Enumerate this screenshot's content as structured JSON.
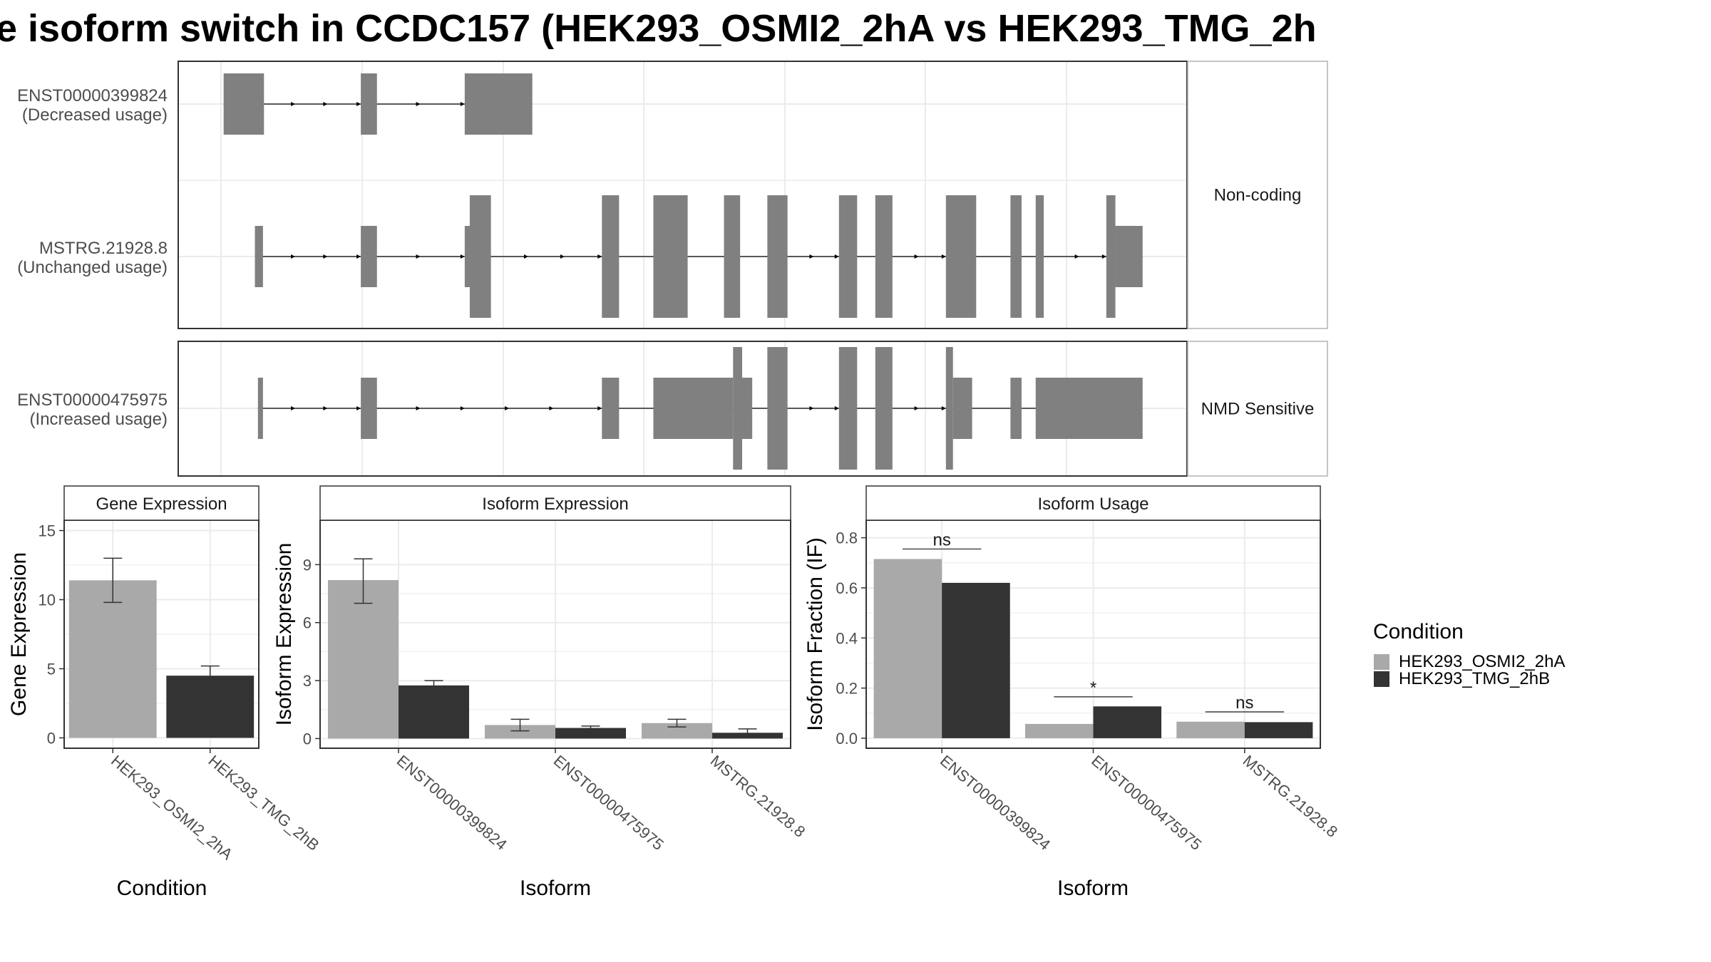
{
  "title": "e isoform switch in CCDC157 (HEK293_OSMI2_2hA vs HEK293_TMG_2h",
  "colors": {
    "exon": "#808080",
    "cond_a": "#a9a9a9",
    "cond_b": "#333333",
    "grid": "#ebebeb",
    "panel_border": "#333333",
    "strip_border": "#b3b3b3"
  },
  "transcripts": {
    "xlim": [
      0,
      100
    ],
    "facets": [
      {
        "strip": "Non-coding",
        "isoforms": [
          {
            "id": "ENST00000399824",
            "usage": "(Decreased usage)",
            "range": [
              4.5,
              35.1
            ],
            "exons": [
              [
                4.5,
                8.5,
                "utr"
              ],
              [
                18.1,
                19.7,
                "utr"
              ],
              [
                28.4,
                35.1,
                "utr"
              ]
            ],
            "arrows": [
              11.6,
              14.8,
              18.1,
              24,
              28.4
            ]
          },
          {
            "id": "MSTRG.21928.8",
            "usage": "(Unchanged usage)",
            "range": [
              7.6,
              95.6
            ],
            "exons": [
              [
                7.6,
                8.4,
                "utr"
              ],
              [
                18.1,
                19.7,
                "utr"
              ],
              [
                28.4,
                29.0,
                "utr"
              ],
              [
                28.9,
                31.0,
                "cds"
              ],
              [
                42.0,
                43.7,
                "cds"
              ],
              [
                47.1,
                50.5,
                "cds"
              ],
              [
                54.1,
                55.7,
                "cds"
              ],
              [
                58.4,
                60.4,
                "cds"
              ],
              [
                65.5,
                67.3,
                "cds"
              ],
              [
                69.1,
                70.8,
                "cds"
              ],
              [
                76.1,
                79.1,
                "cds"
              ],
              [
                82.5,
                83.6,
                "cds"
              ],
              [
                85.0,
                85.8,
                "cds"
              ],
              [
                92.0,
                92.9,
                "cds"
              ],
              [
                92.9,
                95.6,
                "utr"
              ]
            ],
            "arrows": [
              11.6,
              14.8,
              18.1,
              24,
              28.4,
              34.7,
              38.3,
              42.0,
              63.0,
              65.5,
              73.4,
              76.1,
              89.3,
              92.0
            ]
          }
        ]
      },
      {
        "strip": "NMD Sensitive",
        "isoforms": [
          {
            "id": "ENST00000475975",
            "usage": "(Increased usage)",
            "range": [
              7.9,
              95.6
            ],
            "exons": [
              [
                7.9,
                8.4,
                "utr"
              ],
              [
                18.1,
                19.7,
                "utr"
              ],
              [
                42.0,
                43.7,
                "utr"
              ],
              [
                47.1,
                55.0,
                "utr"
              ],
              [
                55.0,
                55.9,
                "cds"
              ],
              [
                55.9,
                56.9,
                "utr"
              ],
              [
                58.4,
                60.4,
                "cds"
              ],
              [
                65.5,
                67.3,
                "cds"
              ],
              [
                69.1,
                70.8,
                "cds"
              ],
              [
                76.1,
                76.8,
                "cds"
              ],
              [
                76.8,
                78.7,
                "utr"
              ],
              [
                82.5,
                83.6,
                "utr"
              ],
              [
                85.0,
                95.6,
                "utr"
              ]
            ],
            "arrows": [
              11.6,
              14.8,
              18.1,
              24,
              28.4,
              32.8,
              37.2,
              42.0,
              63.0,
              65.5,
              73.4,
              76.1
            ]
          }
        ]
      }
    ]
  },
  "chart_data": [
    {
      "type": "bar",
      "panel": "Gene Expression",
      "categories": [
        "HEK293_OSMI2_2hA",
        "HEK293_TMG_2hB"
      ],
      "series": [
        {
          "name": "HEK293_OSMI2_2hA",
          "values": [
            11.4,
            null
          ],
          "errors": [
            [
              9.8,
              13.0
            ],
            null
          ]
        },
        {
          "name": "HEK293_TMG_2hB",
          "values": [
            null,
            4.5
          ],
          "errors": [
            null,
            [
              3.7,
              5.2
            ]
          ]
        }
      ],
      "xlabel": "Condition",
      "ylabel": "Gene Expression",
      "ylim": [
        -0.75,
        15.75
      ],
      "yticks": [
        0,
        5,
        10,
        15
      ],
      "ytick_labels": [
        "0",
        "5",
        "10",
        "15"
      ]
    },
    {
      "type": "bar",
      "panel": "Isoform Expression",
      "categories": [
        "ENST00000399824",
        "ENST00000475975",
        "MSTRG.21928.8"
      ],
      "series": [
        {
          "name": "HEK293_OSMI2_2hA",
          "values": [
            8.2,
            0.7,
            0.8
          ],
          "errors": [
            [
              7.0,
              9.3
            ],
            [
              0.4,
              1.0
            ],
            [
              0.6,
              1.0
            ]
          ]
        },
        {
          "name": "HEK293_TMG_2hB",
          "values": [
            2.75,
            0.55,
            0.3
          ],
          "errors": [
            [
              2.55,
              3.0
            ],
            [
              0.45,
              0.65
            ],
            [
              0.15,
              0.5
            ]
          ]
        }
      ],
      "xlabel": "Isoform",
      "ylabel": "Isoform Expression",
      "ylim": [
        -0.5,
        11.3
      ],
      "yticks": [
        0,
        3,
        6,
        9
      ],
      "ytick_labels": [
        "0",
        "3",
        "6",
        "9"
      ]
    },
    {
      "type": "bar",
      "panel": "Isoform Usage",
      "categories": [
        "ENST00000399824",
        "ENST00000475975",
        "MSTRG.21928.8"
      ],
      "series": [
        {
          "name": "HEK293_OSMI2_2hA",
          "values": [
            0.715,
            0.057,
            0.066
          ]
        },
        {
          "name": "HEK293_TMG_2hB",
          "values": [
            0.62,
            0.127,
            0.064
          ]
        }
      ],
      "significance": [
        {
          "label": "ns",
          "level": 0.755
        },
        {
          "label": "*",
          "level": 0.165
        },
        {
          "label": "ns",
          "level": 0.105
        }
      ],
      "xlabel": "Isoform",
      "ylabel": "Isoform Fraction (IF)",
      "ylim": [
        -0.04,
        0.87
      ],
      "yticks": [
        0.0,
        0.2,
        0.4,
        0.6,
        0.8
      ],
      "ytick_labels": [
        "0.0",
        "0.2",
        "0.4",
        "0.6",
        "0.8"
      ]
    }
  ],
  "legend": {
    "title": "Condition",
    "entries": [
      "HEK293_OSMI2_2hA",
      "HEK293_TMG_2hB"
    ]
  }
}
